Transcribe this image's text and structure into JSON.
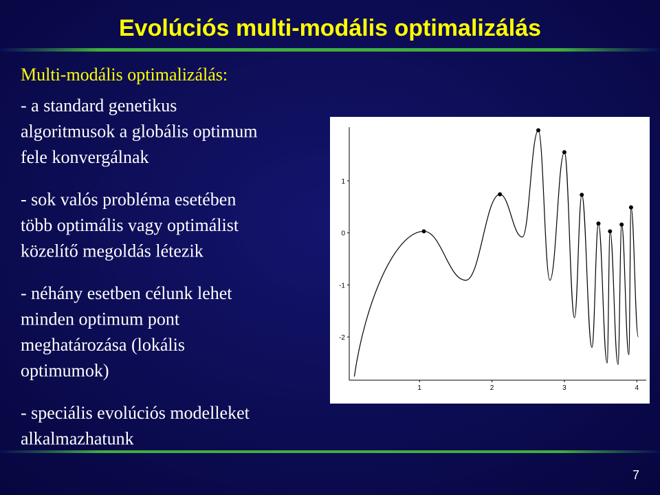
{
  "header": {
    "title": "Evolúciós multi-modális optimalizálás"
  },
  "content": {
    "heading": "Multi-modális optimalizálás:",
    "paragraphs": [
      [
        "- a standard genetikus",
        "algoritmusok a globális optimum",
        "fele konvergálnak"
      ],
      [
        "- sok valós probléma esetében",
        "több optimális vagy optimálist",
        "közelítő megoldás létezik"
      ],
      [
        "- néhány esetben célunk lehet",
        "minden optimum pont",
        "meghatározása (lokális",
        "optimumok)"
      ],
      [
        "- speciális evolúciós modelleket",
        "alkalmazhatunk"
      ]
    ]
  },
  "chart_data": {
    "type": "line",
    "xlim": [
      0.03,
      4.13
    ],
    "ylim": [
      -2.83,
      2.03
    ],
    "xticks": [
      1,
      2,
      3,
      4
    ],
    "yticks": [
      -2,
      -1,
      0,
      1
    ],
    "series": [
      {
        "style": "line",
        "color": "#000000",
        "x": [
          0.1,
          1.06,
          1.64,
          2.11,
          2.42,
          2.64,
          2.8,
          3.0,
          3.14,
          3.24,
          3.38,
          3.47,
          3.59,
          3.63,
          3.74,
          3.79,
          3.89,
          3.92,
          4.02
        ],
        "values": [
          -2.76,
          0.03,
          -0.91,
          0.74,
          -0.08,
          1.97,
          -0.91,
          1.55,
          -1.63,
          0.73,
          -2.2,
          0.18,
          -2.5,
          0.03,
          -2.53,
          0.16,
          -2.34,
          0.49,
          -2.0
        ]
      },
      {
        "style": "points",
        "color": "#000000",
        "x": [
          1.06,
          2.11,
          2.64,
          3.0,
          3.24,
          3.47,
          3.63,
          3.79,
          3.92
        ],
        "values": [
          0.03,
          0.74,
          1.97,
          1.55,
          0.73,
          0.18,
          0.03,
          0.16,
          0.49
        ]
      }
    ]
  },
  "footer": {
    "page": "7"
  }
}
